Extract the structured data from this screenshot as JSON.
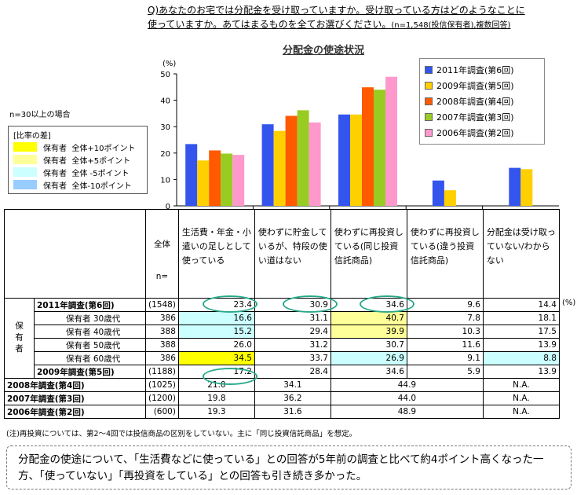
{
  "question": {
    "line1": "Q)あなたのお宅では分配金を受け取っていますか。受け取っている方はどのようなことに",
    "line2": "使っていますか。あてはまるものを全てお選びください。",
    "note": "(n=1,548(投信保有者),複数回答)"
  },
  "colors": {
    "s2011": "#3355ee",
    "s2009": "#ffd000",
    "s2008": "#ff5a00",
    "s2007": "#99cc22",
    "s2006": "#ff99cc",
    "hl_plus10": "#ffff00",
    "hl_plus5": "#ffff99",
    "hl_minus5": "#ccffff",
    "hl_minus10": "#99ccff"
  },
  "chart_data": {
    "type": "bar",
    "title": "分配金の使途状況",
    "ylabel": "(%)",
    "ylim": [
      0,
      50
    ],
    "yticks": [
      "50",
      "40",
      "30",
      "20",
      "10",
      "0"
    ],
    "categories": [
      "生活費・年金・小遣いの足しとして使っている",
      "使わずに貯金しているが、特段の使い道はない",
      "使わずに再投資している(同じ投資信託商品)",
      "使わずに再投資している(違う投資信託商品)",
      "分配金は受け取っていない/わからない"
    ],
    "series": [
      {
        "name": "2011年調査(第6回)",
        "values": [
          23.4,
          30.9,
          34.6,
          9.6,
          14.4
        ]
      },
      {
        "name": "2009年調査(第5回)",
        "values": [
          17.2,
          28.4,
          34.6,
          5.9,
          13.9
        ]
      },
      {
        "name": "2008年調査(第4回)",
        "values": [
          21.0,
          34.1,
          44.9,
          null,
          null
        ]
      },
      {
        "name": "2007年調査(第3回)",
        "values": [
          19.8,
          36.2,
          44.0,
          null,
          null
        ]
      },
      {
        "name": "2006年調査(第2回)",
        "values": [
          19.3,
          31.6,
          48.9,
          null,
          null
        ]
      }
    ]
  },
  "diff_legend": {
    "note": "n=30以上の場合",
    "title": "[比率の差]",
    "items": [
      {
        "label": "保有者",
        "desc": "全体+10ポイント"
      },
      {
        "label": "保有者",
        "desc": "全体+5ポイント"
      },
      {
        "label": "保有者",
        "desc": "全体 -5ポイント"
      },
      {
        "label": "保有者",
        "desc": "全体-10ポイント"
      }
    ]
  },
  "table": {
    "header_total": "全体",
    "header_n": "n=",
    "cols": [
      "生活費・年金・小遣いの足しとして使っている",
      "使わずに貯金しているが、特段の使い道はない",
      "使わずに再投資している(同じ投資信託商品)",
      "使わずに再投資している(違う投資信託商品)",
      "分配金は受け取っていない/わからない"
    ],
    "group_label": "保有者",
    "pct": "(%)",
    "row2011": {
      "label": "2011年調査(第6回)",
      "n": "(1548)",
      "v": [
        "23.4",
        "30.9",
        "34.6",
        "9.6",
        "14.4"
      ]
    },
    "ages": [
      {
        "label": "保有者 30歳代",
        "n": "386",
        "v": [
          "16.6",
          "31.1",
          "40.7",
          "7.8",
          "18.1"
        ],
        "hl": [
          "minus5",
          "",
          "plus10b",
          "",
          ""
        ]
      },
      {
        "label": "保有者 40歳代",
        "n": "388",
        "v": [
          "15.2",
          "29.4",
          "39.9",
          "10.3",
          "17.5"
        ],
        "hl": [
          "minus5",
          "",
          "plus5",
          "",
          ""
        ]
      },
      {
        "label": "保有者 50歳代",
        "n": "388",
        "v": [
          "26.0",
          "31.2",
          "30.7",
          "11.6",
          "13.9"
        ],
        "hl": [
          "",
          "",
          "",
          "",
          ""
        ]
      },
      {
        "label": "保有者 60歳代",
        "n": "386",
        "v": [
          "34.5",
          "33.7",
          "26.9",
          "9.1",
          "8.8"
        ],
        "hl": [
          "plus10",
          "",
          "minus5",
          "",
          "minus5"
        ]
      }
    ],
    "row2009": {
      "label": "2009年調査(第5回)",
      "n": "(1188)",
      "v": [
        "17.2",
        "28.4",
        "34.6",
        "5.9",
        "13.9"
      ]
    },
    "old": [
      {
        "label": "2008年調査(第4回)",
        "n": "(1025)",
        "v1": "21.0",
        "v2": "34.1",
        "v3": "44.9",
        "v4": "N.A."
      },
      {
        "label": "2007年調査(第3回)",
        "n": "(1200)",
        "v1": "19.8",
        "v2": "36.2",
        "v3": "44.0",
        "v4": "N.A."
      },
      {
        "label": "2006年調査(第2回)",
        "n": "(600)",
        "v1": "19.3",
        "v2": "31.6",
        "v3": "48.9",
        "v4": "N.A."
      }
    ]
  },
  "footnote": "(注)再投資については、第2～4回では投信商品の区別をしていない。主に「同じ投資信託商品」を想定。",
  "summary": "分配金の使途について、「生活費などに使っている」との回答が5年前の調査と比べて約4ポイント高くなった一方、「使っていない」「再投資をしている」との回答も引き続き多かった。"
}
